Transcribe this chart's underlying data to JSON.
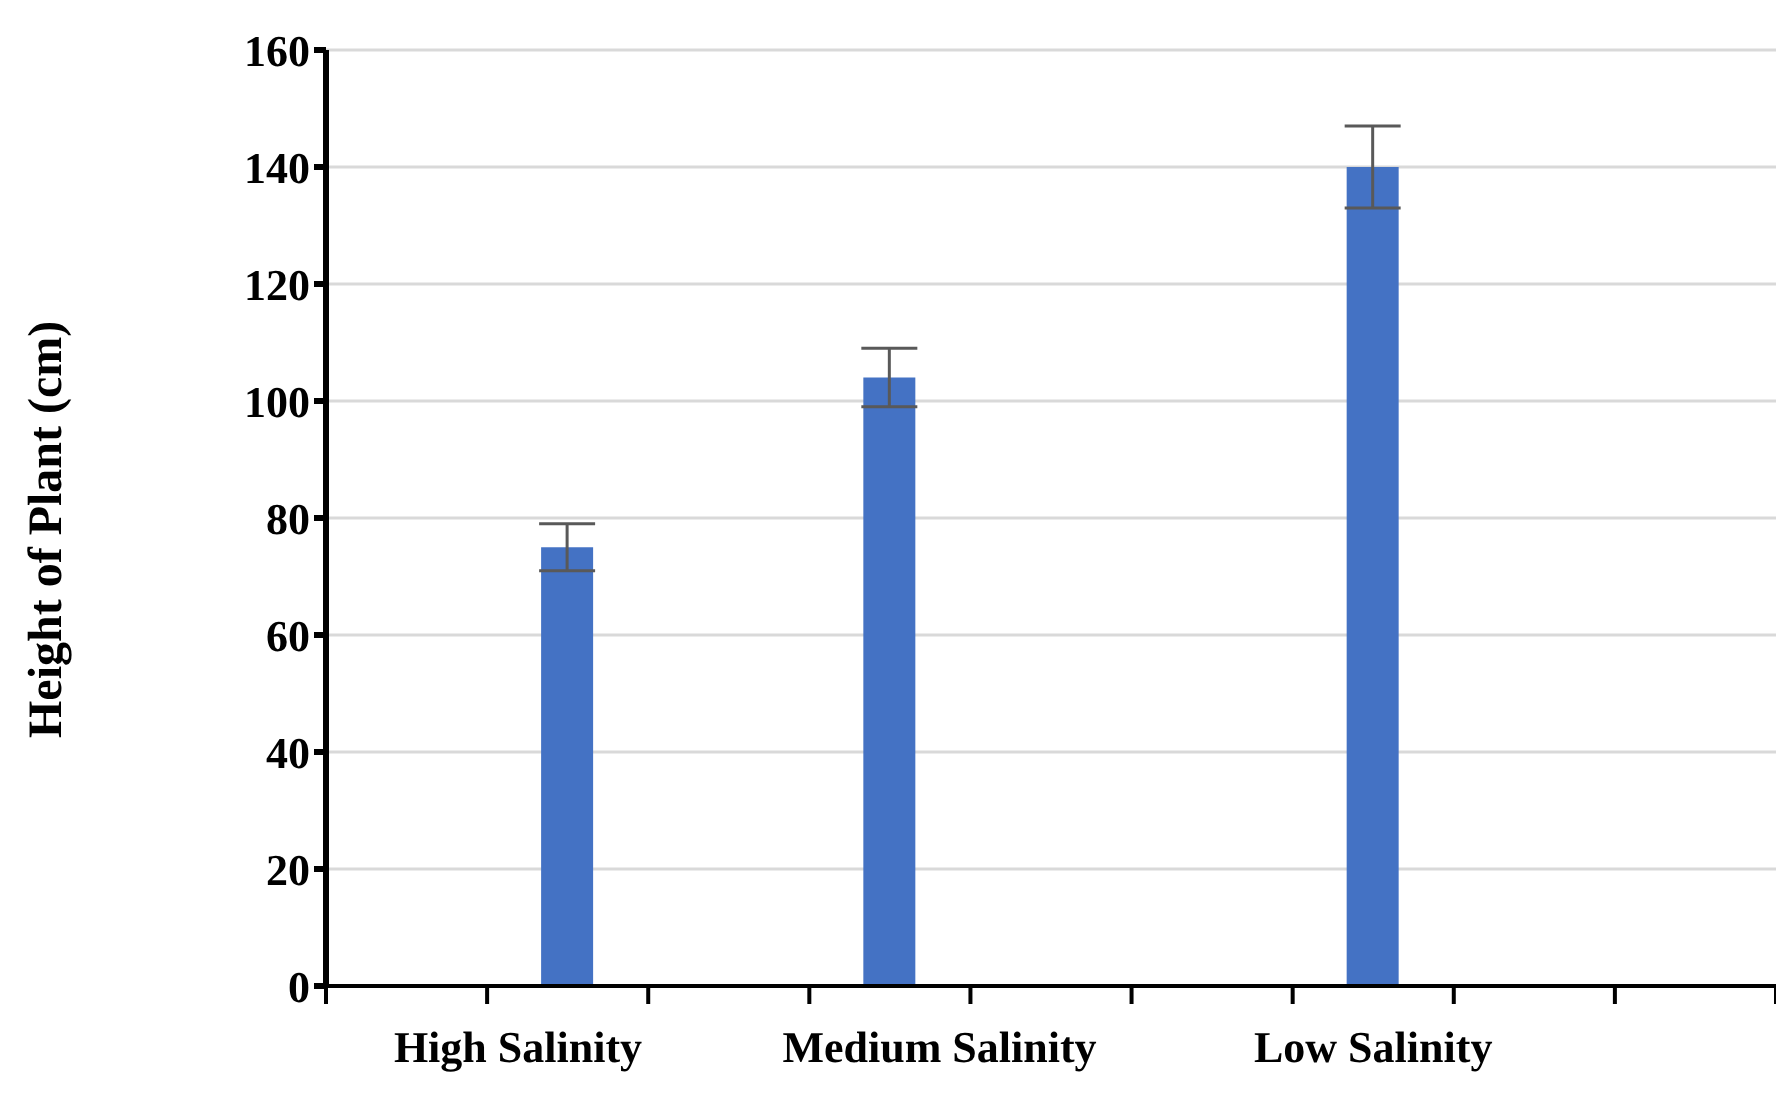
{
  "chart_data": {
    "type": "bar",
    "ylabel": "Height of Plant (cm)",
    "categories": [
      null,
      "High Salinity",
      null,
      "Medium Salinity",
      null,
      null,
      "Low Salinity",
      null,
      null
    ],
    "values": [
      null,
      75,
      null,
      104,
      null,
      null,
      140,
      null,
      null
    ],
    "errors": [
      null,
      4,
      null,
      5,
      null,
      null,
      7,
      null,
      null
    ],
    "color": "#4472c4",
    "ylim": [
      0,
      160
    ],
    "yticks": [
      0,
      20,
      40,
      60,
      80,
      100,
      120,
      140,
      160
    ],
    "grid": "y",
    "legend": false
  }
}
